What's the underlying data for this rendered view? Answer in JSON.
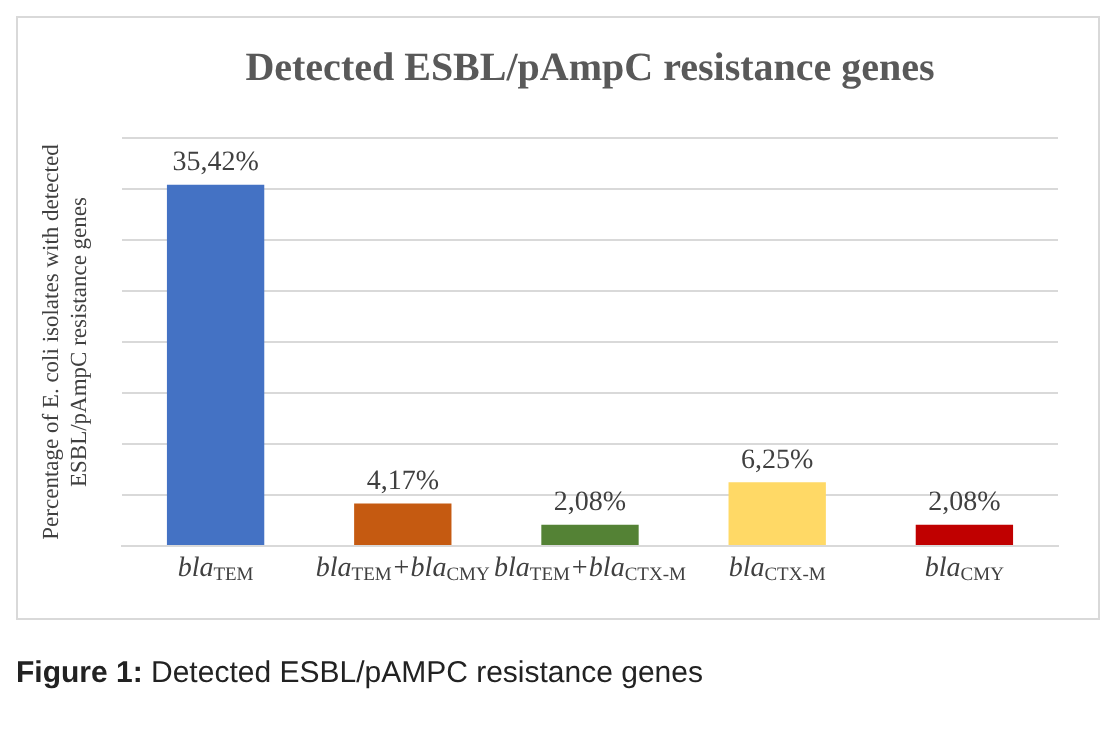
{
  "chart_data": {
    "type": "bar",
    "title": "Detected ESBL/pAmpC resistance genes",
    "ylabel": "Percentage of E. coli isolates with detected ESBL/pAmpC resistance genes",
    "categories": [
      "bla$_{TEM}$",
      "bla$_{TEM}$+bla$_{CMY}$",
      "bla$_{TEM}$+bla$_{CTX-M}$",
      "bla$_{CTX-M}$",
      "bla$_{CMY}$"
    ],
    "values": [
      35.42,
      4.17,
      2.08,
      6.25,
      2.08
    ],
    "value_labels": [
      "35,42%",
      "4,17%",
      "2,08%",
      "6,25%",
      "2,08%"
    ],
    "colors": [
      "#4472c4",
      "#c55a11",
      "#548235",
      "#ffd966",
      "#c00000"
    ],
    "ylim": [
      0,
      40
    ],
    "yticks": [
      {
        "value": 0,
        "label": null
      },
      {
        "value": 5,
        "label": null
      },
      {
        "value": 10,
        "label": null
      },
      {
        "value": 15,
        "label": null
      },
      {
        "value": 20,
        "label": null
      },
      {
        "value": 25,
        "label": null
      },
      {
        "value": 30,
        "label": null
      },
      {
        "value": 35,
        "label": null
      },
      {
        "value": 40,
        "label": null
      }
    ],
    "grid": "y",
    "tick_labels": "x",
    "annotations": [
      "Figure 1: Detected ESBL/pAMPC resistance genes"
    ]
  }
}
